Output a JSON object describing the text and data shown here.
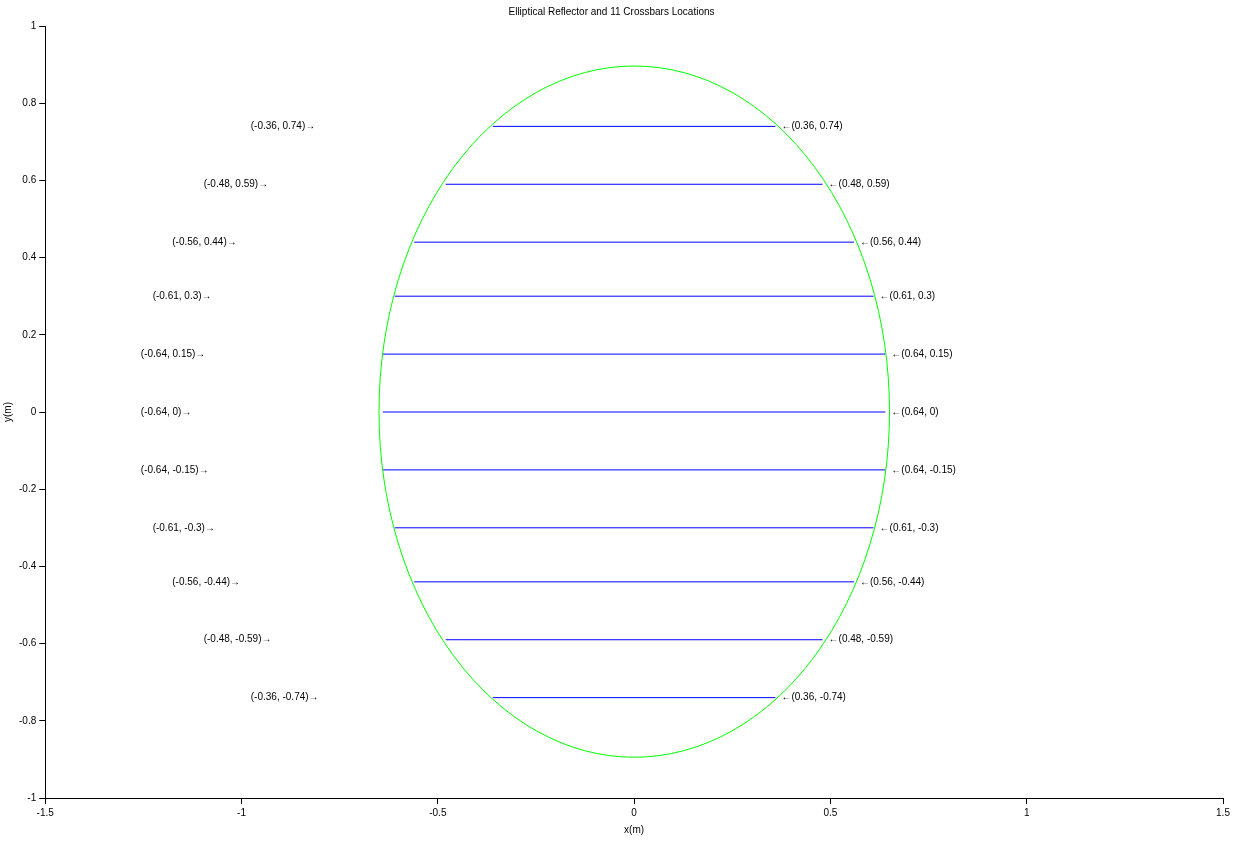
{
  "chart_data": {
    "type": "line",
    "title": "Elliptical Reflector and 11 Crossbars Locations",
    "xlabel": "x(m)",
    "ylabel": "y(m)",
    "xlim": [
      -1.5,
      1.5
    ],
    "xticks": [
      -1.5,
      -1,
      -0.5,
      0,
      0.5,
      1,
      1.5
    ],
    "ylim": [
      -1,
      1
    ],
    "yticks": [
      -1,
      -0.8,
      -0.6,
      -0.4,
      -0.2,
      0,
      0.2,
      0.4,
      0.6,
      0.8,
      1
    ],
    "grid": false,
    "legend": false,
    "marker": "none",
    "line_style": "solid",
    "series": [
      {
        "color": "#0000ff",
        "x": [
          -0.36,
          0.36
        ],
        "values": [
          0.74,
          0.74
        ]
      },
      {
        "color": "#0000ff",
        "x": [
          -0.48,
          0.48
        ],
        "values": [
          0.59,
          0.59
        ]
      },
      {
        "color": "#0000ff",
        "x": [
          -0.56,
          0.56
        ],
        "values": [
          0.44,
          0.44
        ]
      },
      {
        "color": "#0000ff",
        "x": [
          -0.61,
          0.61
        ],
        "values": [
          0.3,
          0.3
        ]
      },
      {
        "color": "#0000ff",
        "x": [
          -0.64,
          0.64
        ],
        "values": [
          0.15,
          0.15
        ]
      },
      {
        "color": "#0000ff",
        "x": [
          -0.64,
          0.64
        ],
        "values": [
          0,
          0
        ]
      },
      {
        "color": "#0000ff",
        "x": [
          -0.64,
          0.64
        ],
        "values": [
          -0.15,
          -0.15
        ]
      },
      {
        "color": "#0000ff",
        "x": [
          -0.61,
          0.61
        ],
        "values": [
          -0.3,
          -0.3
        ]
      },
      {
        "color": "#0000ff",
        "x": [
          -0.56,
          0.56
        ],
        "values": [
          -0.44,
          -0.44
        ]
      },
      {
        "color": "#0000ff",
        "x": [
          -0.48,
          0.48
        ],
        "values": [
          -0.59,
          -0.59
        ]
      },
      {
        "color": "#0000ff",
        "x": [
          -0.36,
          0.36
        ],
        "values": [
          -0.74,
          -0.74
        ]
      }
    ],
    "annotations": [
      "(-0.36, 0.74)→",
      {
        "text": "←(0.36, 0.74)",
        "x": 0.36,
        "y": 0.74
      },
      "(-0.48, 0.59)→",
      {
        "text": "←(0.48, 0.59)",
        "x": 0.48,
        "y": 0.59
      },
      "(-0.56, 0.44)→",
      {
        "text": "←(0.56, 0.44)",
        "x": 0.56,
        "y": 0.44
      },
      "(-0.61, 0.3)→",
      {
        "text": "←(0.61, 0.3)",
        "x": 0.61,
        "y": 0.3
      },
      "(-0.64, 0.15)→",
      {
        "text": "←(0.64, 0.15)",
        "x": 0.64,
        "y": 0.15
      },
      "(-0.64, 0)→",
      {
        "text": "←(0.64, 0)",
        "x": 0.64,
        "y": 0
      },
      "(-0.64, -0.15)→",
      {
        "text": "←(0.64, -0.15)",
        "x": 0.64,
        "y": -0.15
      },
      "(-0.61, -0.3)→",
      {
        "text": "←(0.61, -0.3)",
        "x": 0.61,
        "y": -0.3
      },
      "(-0.56, -0.44)→",
      {
        "text": "←(0.56, -0.44)",
        "x": 0.56,
        "y": -0.44
      },
      "(-0.48, -0.59)→",
      {
        "text": "←(0.48, -0.59)",
        "x": 0.48,
        "y": -0.59
      },
      "(-0.36, -0.74)→",
      {
        "text": "←(0.36, -0.74)",
        "x": 0.36,
        "y": -0.74
      }
    ]
  }
}
